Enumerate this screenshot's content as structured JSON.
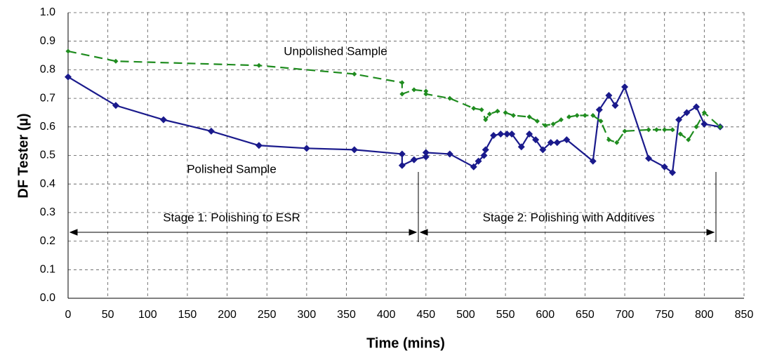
{
  "chart_data": {
    "type": "line",
    "x_label": "Time (mins)",
    "y_label": "DF Tester (µ)",
    "xlim": [
      0,
      850
    ],
    "xticks": [
      0,
      50,
      100,
      150,
      200,
      250,
      300,
      350,
      400,
      450,
      500,
      550,
      600,
      650,
      700,
      750,
      800,
      850
    ],
    "ylim": [
      0,
      1
    ],
    "yticks": [
      {
        "value": 0,
        "label": "0.0"
      },
      0.1,
      0.2,
      0.3,
      0.4,
      0.5,
      0.6,
      0.7,
      0.8,
      0.9,
      {
        "value": 1,
        "label": "1.0"
      }
    ],
    "grid": true,
    "annotations": [
      "Unpolished Sample",
      "Polished Sample",
      "Stage 1: Polishing to ESR",
      "Stage 2: Polishing with Additives"
    ],
    "series": [
      {
        "color": "#1a1a8c",
        "dashed": false,
        "x": [
          0,
          60,
          120,
          180,
          240,
          300,
          360,
          420,
          420,
          435,
          450,
          450,
          480,
          510,
          516,
          523,
          525,
          535,
          544,
          552,
          558,
          570,
          580,
          588,
          597,
          607,
          615,
          627,
          660,
          668,
          680,
          688,
          700,
          730,
          750,
          760,
          768,
          778,
          790,
          800,
          820
        ],
        "values": [
          0.775,
          0.675,
          0.625,
          0.585,
          0.535,
          0.525,
          0.52,
          0.505,
          0.465,
          0.485,
          0.495,
          0.51,
          0.505,
          0.46,
          0.48,
          0.5,
          0.52,
          0.57,
          0.575,
          0.575,
          0.575,
          0.53,
          0.575,
          0.555,
          0.52,
          0.545,
          0.545,
          0.555,
          0.48,
          0.66,
          0.71,
          0.675,
          0.74,
          0.49,
          0.46,
          0.44,
          0.625,
          0.65,
          0.67,
          0.61,
          0.6
        ]
      },
      {
        "color": "#1f8c1f",
        "dashed": true,
        "x": [
          0,
          60,
          240,
          360,
          420,
          420,
          435,
          450,
          450,
          480,
          510,
          520,
          525,
          530,
          540,
          550,
          560,
          580,
          590,
          600,
          610,
          620,
          630,
          640,
          650,
          660,
          670,
          680,
          690,
          700,
          730,
          740,
          750,
          760,
          770,
          780,
          790,
          800,
          820
        ],
        "values": [
          0.865,
          0.83,
          0.815,
          0.785,
          0.755,
          0.715,
          0.73,
          0.725,
          0.715,
          0.7,
          0.665,
          0.66,
          0.625,
          0.645,
          0.655,
          0.65,
          0.64,
          0.635,
          0.62,
          0.605,
          0.61,
          0.625,
          0.635,
          0.64,
          0.64,
          0.64,
          0.62,
          0.555,
          0.545,
          0.585,
          0.59,
          0.59,
          0.59,
          0.59,
          0.575,
          0.555,
          0.6,
          0.65,
          0.6
        ]
      }
    ]
  }
}
